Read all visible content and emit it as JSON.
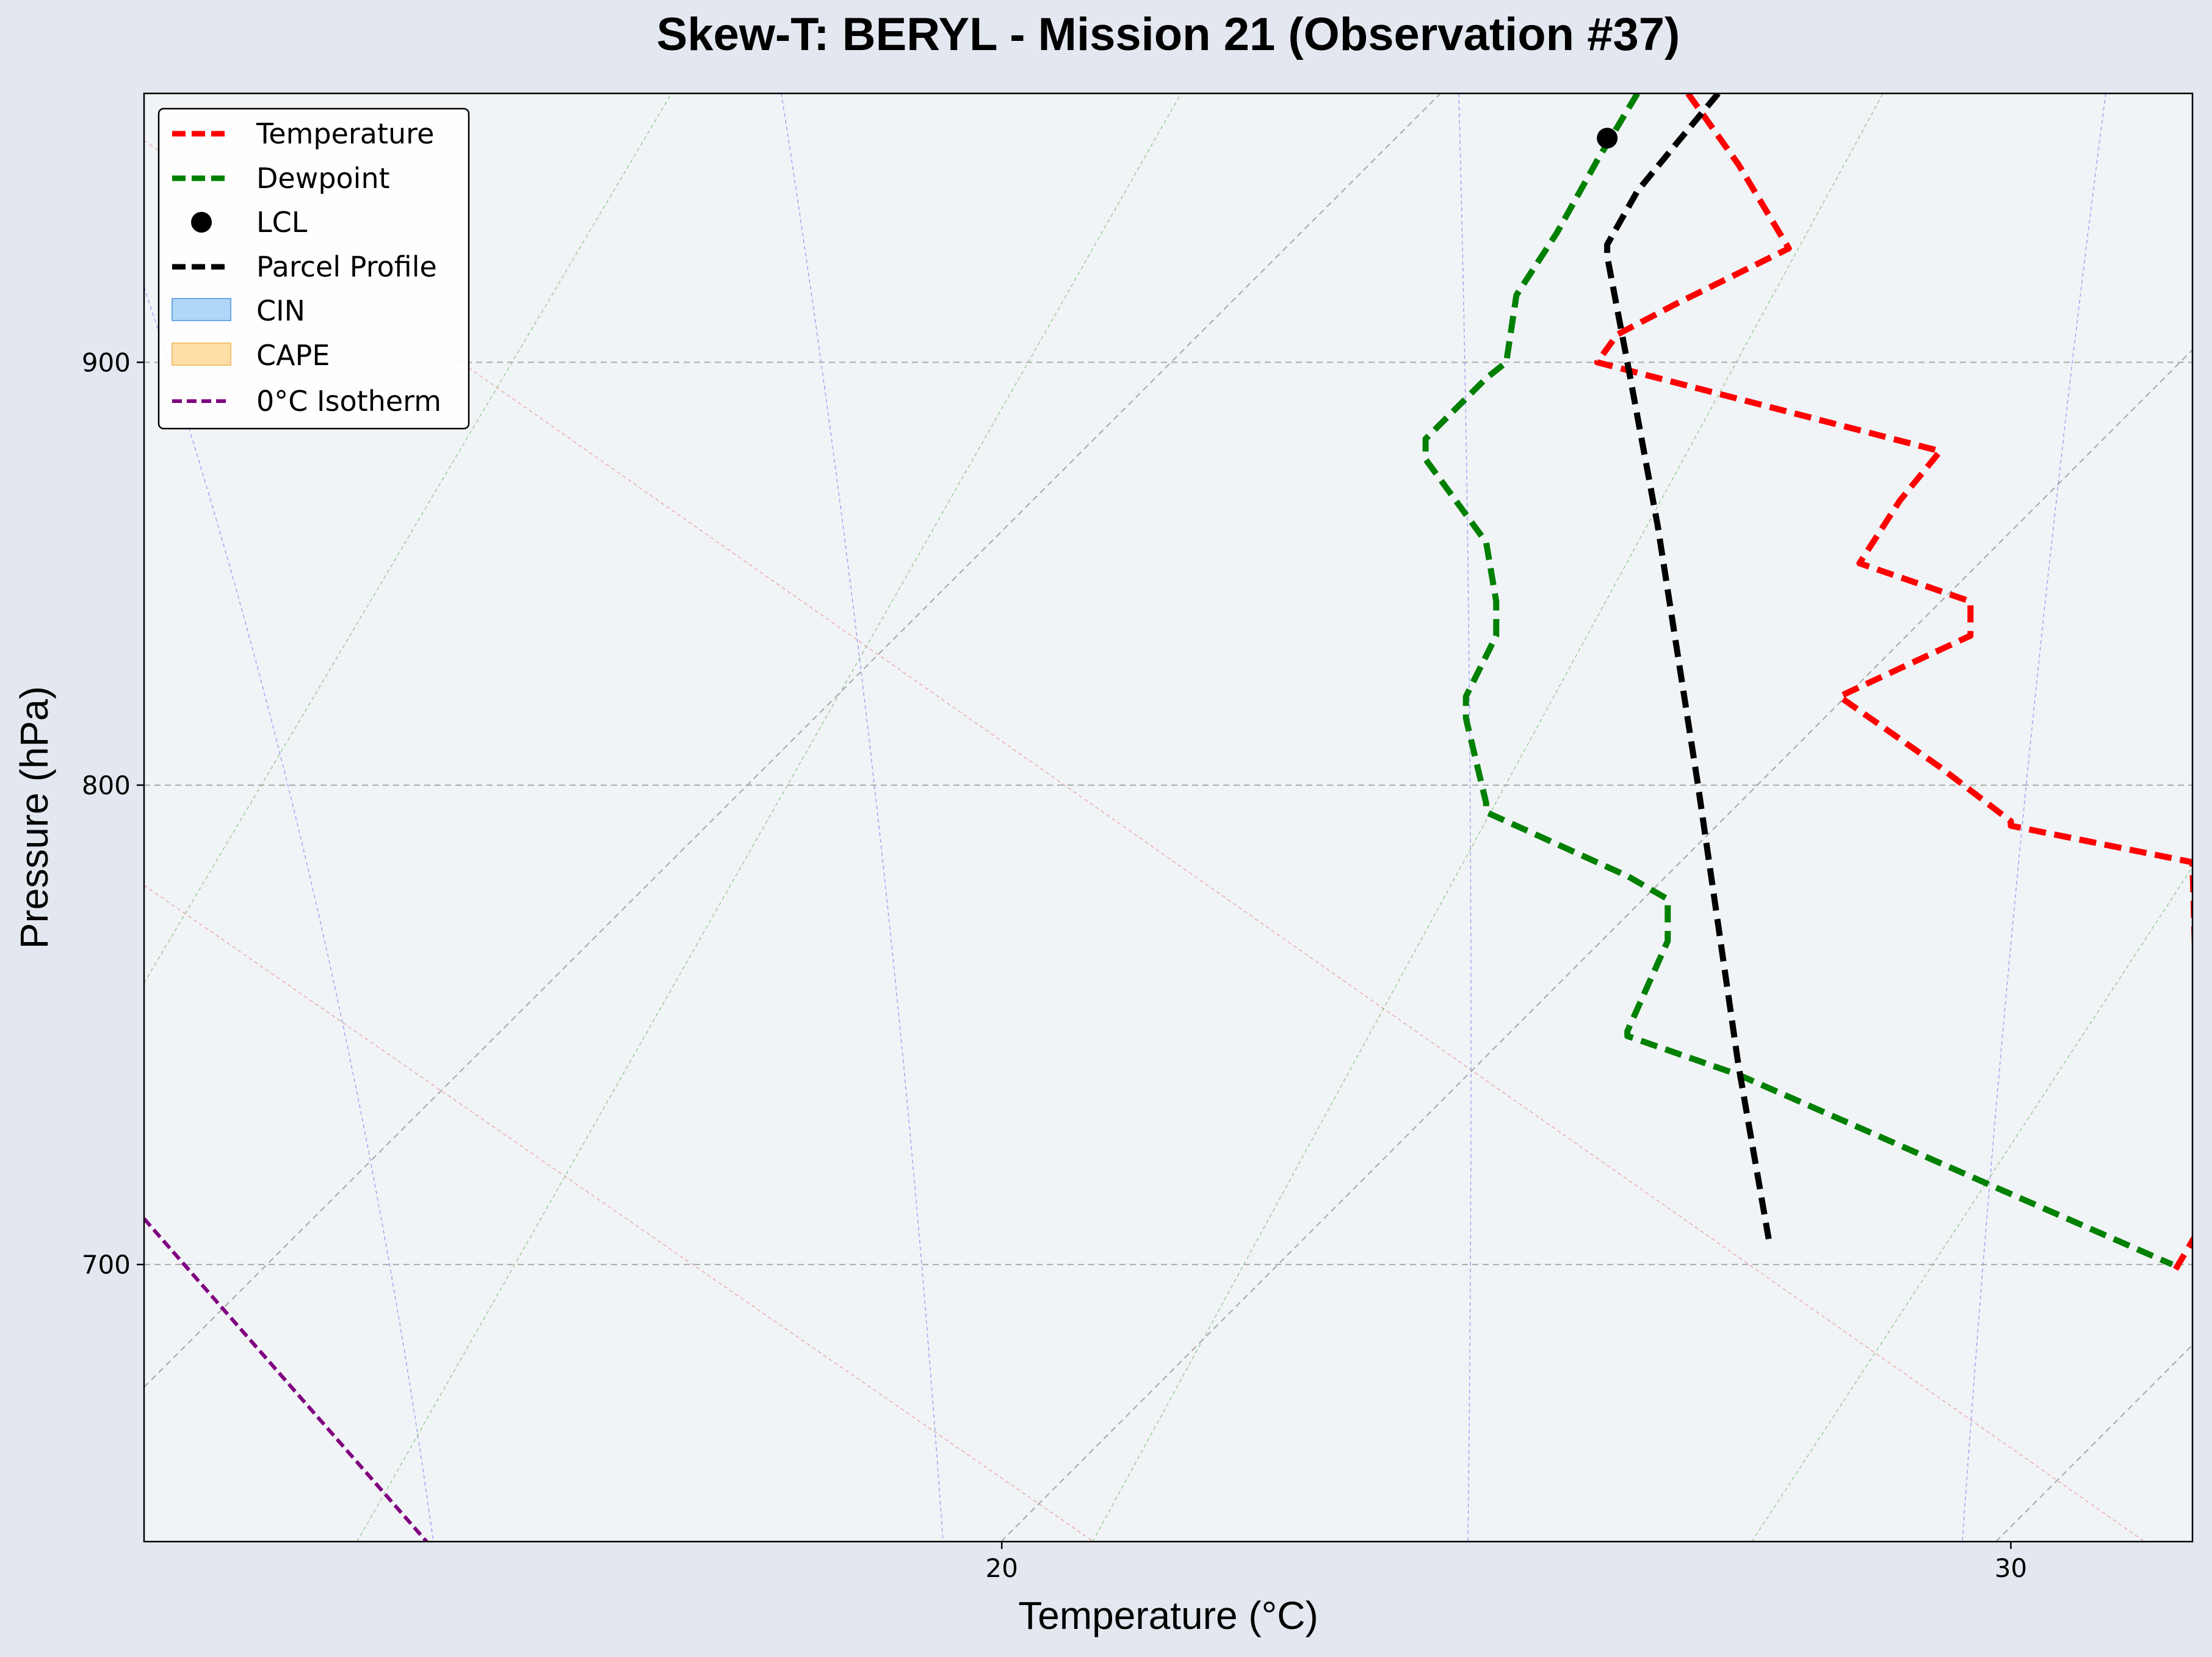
{
  "chart_data": {
    "type": "line",
    "title": "Skew-T: BERYL - Mission 21 (Observation #37)",
    "xlabel": "Temperature (°C)",
    "ylabel": "Pressure (hPa)",
    "xlim": [
      11.5,
      31.8
    ],
    "ylim": [
      970,
      648
    ],
    "y_scale": "log",
    "x_ticks": [
      20,
      30
    ],
    "y_ticks": [
      700,
      800,
      900
    ],
    "grid": true,
    "legend_position": "top-left",
    "legend": [
      "Temperature",
      "Dewpoint",
      "LCL",
      "Parcel Profile",
      "CIN",
      "CAPE",
      "0°C Isotherm"
    ],
    "series": [
      {
        "name": "Temperature",
        "color": "#ff0000",
        "style": "dashed",
        "points": [
          [
            26.8,
            970
          ],
          [
            27.3,
            951
          ],
          [
            27.8,
            929
          ],
          [
            26.7,
            915
          ],
          [
            26.1,
            907
          ],
          [
            25.9,
            900
          ],
          [
            29.3,
            878
          ],
          [
            28.9,
            866
          ],
          [
            28.5,
            851
          ],
          [
            29.6,
            842
          ],
          [
            29.6,
            834
          ],
          [
            28.3,
            820
          ],
          [
            29.3,
            804
          ],
          [
            30.0,
            792
          ],
          [
            30.0,
            791
          ],
          [
            31.8,
            783
          ],
          [
            31.9,
            708
          ],
          [
            31.6,
            698
          ]
        ]
      },
      {
        "name": "Dewpoint",
        "color": "#008000",
        "style": "dashed",
        "points": [
          [
            26.3,
            970
          ],
          [
            25.9,
            952
          ],
          [
            25.5,
            933
          ],
          [
            25.1,
            917
          ],
          [
            25.0,
            900
          ],
          [
            24.8,
            896
          ],
          [
            24.2,
            881
          ],
          [
            24.2,
            876
          ],
          [
            24.8,
            856
          ],
          [
            24.9,
            842
          ],
          [
            24.9,
            834
          ],
          [
            24.6,
            820
          ],
          [
            24.6,
            815
          ],
          [
            24.8,
            796
          ],
          [
            24.8,
            794
          ],
          [
            26.2,
            780
          ],
          [
            26.6,
            775
          ],
          [
            26.6,
            766
          ],
          [
            26.2,
            747
          ],
          [
            26.2,
            746
          ],
          [
            27.3,
            738
          ],
          [
            30.1,
            713
          ],
          [
            31.6,
            700
          ]
        ]
      },
      {
        "name": "Parcel Profile",
        "color": "#000000",
        "style": "dashed",
        "points": [
          [
            27.1,
            970
          ],
          [
            26.7,
            957
          ],
          [
            26.3,
            944
          ],
          [
            26.0,
            930
          ],
          [
            26.0,
            927
          ],
          [
            26.2,
            900
          ],
          [
            26.5,
            860
          ],
          [
            26.9,
            800
          ],
          [
            27.3,
            740
          ],
          [
            27.6,
            705
          ]
        ]
      },
      {
        "name": "0°C Isotherm",
        "color": "#800080",
        "style": "dashed",
        "points": [
          [
            11.5,
            709
          ],
          [
            14.3,
            648
          ]
        ]
      }
    ],
    "markers": [
      {
        "name": "LCL",
        "x": 26.0,
        "y": 958,
        "color": "#000000"
      }
    ]
  }
}
